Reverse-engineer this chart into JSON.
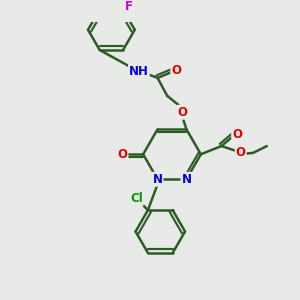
{
  "bg_color": "#e8eae8",
  "bond_color": "#2d5a27",
  "bond_width": 1.8,
  "atom_colors": {
    "O": "#e00000",
    "N": "#0000dd",
    "Cl": "#009900",
    "F": "#cc00cc",
    "C": "#2d5a27"
  },
  "font_size": 8.5,
  "figsize": [
    3.0,
    3.0
  ],
  "dpi": 100,
  "xlim": [
    0,
    10
  ],
  "ylim": [
    0,
    10
  ]
}
